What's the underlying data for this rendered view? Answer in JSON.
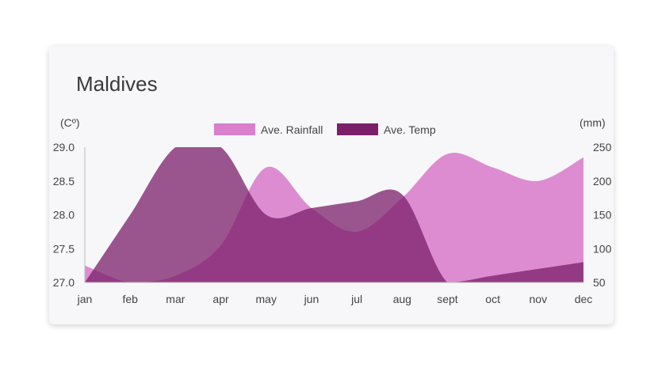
{
  "colors": {
    "rainfall": "#d97fcc",
    "temp": "#7b1f6a"
  },
  "chart_data": {
    "type": "area",
    "title": "Maldives",
    "categories": [
      "jan",
      "feb",
      "mar",
      "apr",
      "may",
      "jun",
      "jul",
      "aug",
      "sept",
      "oct",
      "nov",
      "dec"
    ],
    "y_left": {
      "label": "(Cº)",
      "range": [
        27.0,
        29.0
      ],
      "ticks": [
        "27.0",
        "27.5",
        "28.0",
        "28.5",
        "29.0"
      ]
    },
    "y_right": {
      "label": "(mm)",
      "range": [
        50,
        250
      ],
      "ticks": [
        "50",
        "100",
        "150",
        "200",
        "250"
      ]
    },
    "series": [
      {
        "name": "Ave. Rainfall",
        "axis": "right",
        "values": [
          75,
          50,
          60,
          105,
          220,
          160,
          125,
          175,
          240,
          220,
          200,
          235
        ]
      },
      {
        "name": "Ave. Temp",
        "axis": "left",
        "values": [
          27.0,
          28.0,
          29.0,
          29.0,
          28.0,
          28.1,
          28.2,
          28.3,
          27.0,
          27.1,
          27.2,
          27.3
        ]
      }
    ],
    "legend": "top-center",
    "grid": false
  }
}
